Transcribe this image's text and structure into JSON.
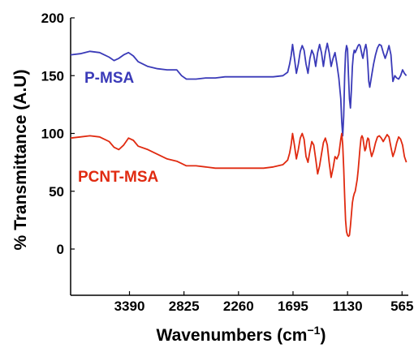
{
  "chart_data": {
    "type": "line",
    "xlabel": "Wavenumbers (cm",
    "xlabel_sup": "−1",
    "xlabel_close": ")",
    "ylabel": "% Transmittance (A.U)",
    "xlim": [
      4000,
      500
    ],
    "ylim": [
      -40,
      200
    ],
    "x_reversed": true,
    "x_ticks": [
      3390,
      2825,
      2260,
      1695,
      1130,
      565
    ],
    "x_tick_labels": [
      "3390",
      "2825",
      "2260",
      "1695",
      "1130",
      "565"
    ],
    "y_ticks": [
      0,
      50,
      100,
      150,
      200
    ],
    "y_tick_labels": [
      "0",
      "50",
      "100",
      "150",
      "200"
    ],
    "grid": false,
    "series": [
      {
        "name": "P-MSA",
        "color": "#3a3ab8",
        "x": [
          4000,
          3900,
          3800,
          3700,
          3600,
          3550,
          3500,
          3450,
          3400,
          3350,
          3300,
          3200,
          3100,
          3000,
          2900,
          2850,
          2800,
          2700,
          2600,
          2500,
          2400,
          2300,
          2200,
          2100,
          2000,
          1900,
          1800,
          1750,
          1730,
          1715,
          1700,
          1680,
          1660,
          1640,
          1620,
          1600,
          1580,
          1560,
          1540,
          1520,
          1500,
          1480,
          1460,
          1440,
          1420,
          1400,
          1380,
          1360,
          1340,
          1320,
          1300,
          1280,
          1260,
          1240,
          1220,
          1200,
          1190,
          1180,
          1170,
          1160,
          1150,
          1140,
          1130,
          1120,
          1110,
          1100,
          1090,
          1080,
          1070,
          1060,
          1050,
          1040,
          1030,
          1020,
          1010,
          1000,
          990,
          980,
          970,
          960,
          950,
          940,
          930,
          920,
          910,
          900,
          880,
          860,
          840,
          820,
          800,
          780,
          760,
          740,
          720,
          700,
          680,
          660,
          640,
          620,
          600,
          580,
          560,
          540,
          520
        ],
        "values": [
          168,
          169,
          171,
          170,
          166,
          163,
          165,
          168,
          170,
          167,
          162,
          158,
          156,
          155,
          155,
          150,
          147,
          147,
          148,
          148,
          149,
          149,
          149,
          149,
          149,
          149,
          150,
          153,
          160,
          167,
          177,
          165,
          152,
          160,
          171,
          176,
          172,
          160,
          152,
          165,
          172,
          168,
          158,
          170,
          177,
          170,
          158,
          170,
          178,
          170,
          158,
          165,
          170,
          160,
          148,
          130,
          110,
          98,
          115,
          150,
          170,
          176,
          173,
          150,
          130,
          122,
          138,
          158,
          168,
          172,
          170,
          172,
          174,
          176,
          177,
          176,
          172,
          168,
          165,
          170,
          174,
          177,
          172,
          160,
          145,
          140,
          150,
          160,
          168,
          174,
          177,
          176,
          170,
          165,
          170,
          176,
          168,
          145,
          150,
          148,
          147,
          150,
          155,
          152,
          150
        ]
      },
      {
        "name": "PCNT-MSA",
        "color": "#e02a10",
        "x": [
          4000,
          3900,
          3800,
          3700,
          3600,
          3550,
          3500,
          3450,
          3400,
          3350,
          3300,
          3200,
          3100,
          3000,
          2900,
          2850,
          2800,
          2700,
          2600,
          2500,
          2400,
          2300,
          2200,
          2100,
          2000,
          1900,
          1800,
          1750,
          1730,
          1715,
          1700,
          1680,
          1660,
          1640,
          1620,
          1600,
          1580,
          1560,
          1540,
          1520,
          1500,
          1480,
          1460,
          1440,
          1420,
          1400,
          1380,
          1360,
          1340,
          1320,
          1300,
          1280,
          1260,
          1240,
          1220,
          1200,
          1190,
          1180,
          1170,
          1160,
          1150,
          1140,
          1130,
          1120,
          1110,
          1100,
          1090,
          1080,
          1070,
          1060,
          1050,
          1040,
          1030,
          1020,
          1010,
          1000,
          990,
          980,
          970,
          960,
          950,
          940,
          930,
          920,
          910,
          900,
          880,
          860,
          840,
          820,
          800,
          780,
          760,
          740,
          720,
          700,
          680,
          660,
          640,
          620,
          600,
          580,
          560,
          540,
          520
        ],
        "values": [
          96,
          97,
          98,
          97,
          93,
          88,
          86,
          90,
          96,
          94,
          89,
          86,
          82,
          78,
          76,
          74,
          72,
          72,
          71,
          70,
          70,
          70,
          70,
          70,
          70,
          71,
          73,
          77,
          83,
          90,
          100,
          90,
          78,
          86,
          96,
          100,
          95,
          80,
          75,
          85,
          93,
          90,
          78,
          65,
          72,
          82,
          92,
          96,
          90,
          75,
          62,
          70,
          80,
          78,
          82,
          95,
          100,
          90,
          70,
          45,
          25,
          15,
          12,
          11,
          12,
          20,
          30,
          40,
          45,
          48,
          50,
          55,
          60,
          68,
          78,
          88,
          96,
          98,
          96,
          90,
          85,
          87,
          93,
          96,
          95,
          88,
          80,
          85,
          92,
          97,
          98,
          96,
          93,
          96,
          99,
          97,
          88,
          80,
          85,
          92,
          97,
          95,
          90,
          80,
          75
        ]
      }
    ]
  }
}
